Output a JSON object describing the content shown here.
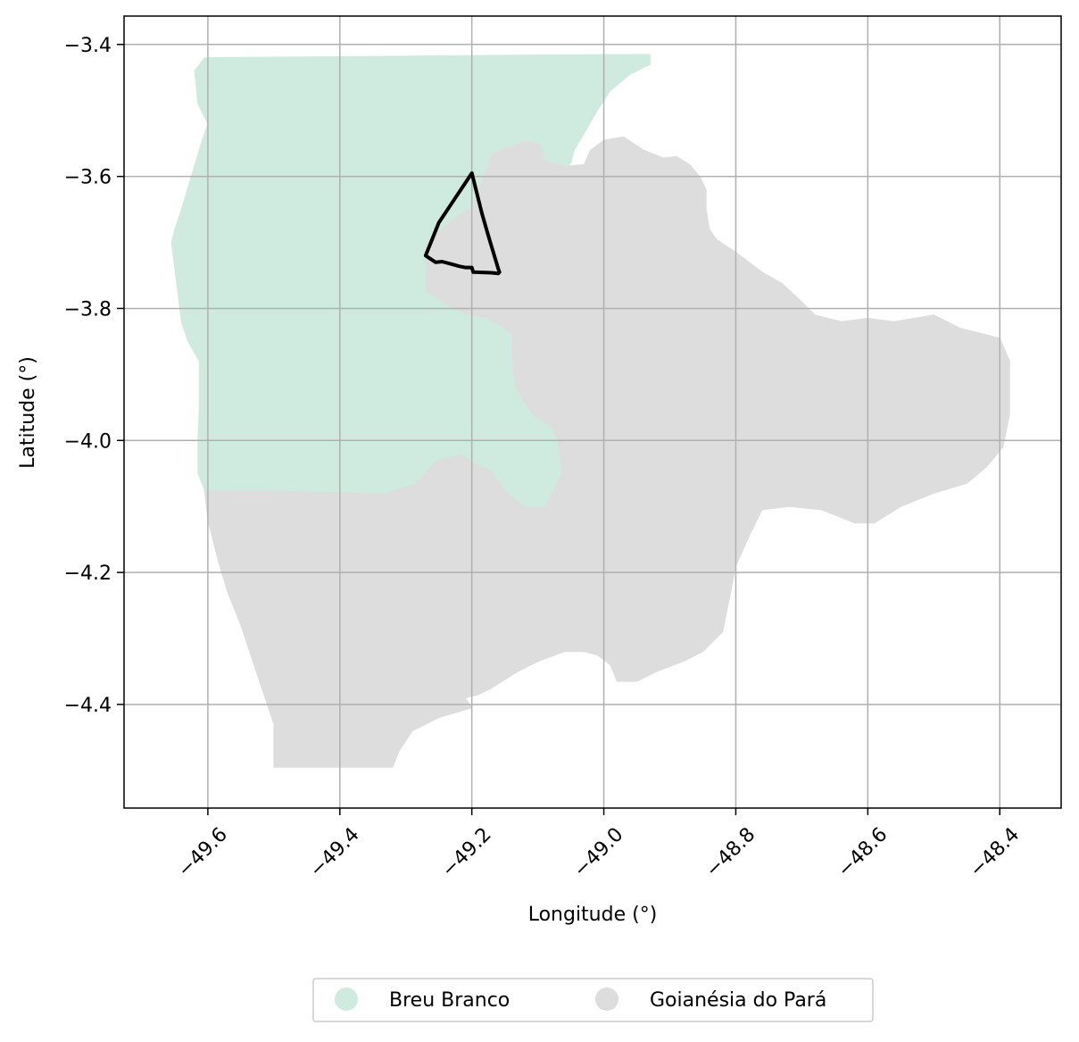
{
  "chart_data": {
    "type": "map",
    "xlabel": "Longitude (°)",
    "ylabel": "Latitude (°)",
    "xlim": [
      -49.727,
      -48.307
    ],
    "ylim": [
      -4.557,
      -3.357
    ],
    "x_ticks": [
      -49.6,
      -49.4,
      -49.2,
      -49.0,
      -48.8,
      -48.6,
      -48.4
    ],
    "x_tick_labels": [
      "−49.6",
      "−49.4",
      "−49.2",
      "−49.0",
      "−48.8",
      "−48.6",
      "−48.4"
    ],
    "y_ticks": [
      -3.4,
      -3.6,
      -3.8,
      -4.0,
      -4.2,
      -4.4
    ],
    "y_tick_labels": [
      "−3.4",
      "−3.6",
      "−3.8",
      "−4.0",
      "−4.2",
      "−4.4"
    ],
    "grid": true,
    "legend_position": "bottom-center",
    "regions": [
      {
        "name": "Goianésia do Pará",
        "color": "#dddddd",
        "polygon": [
          [
            -49.2,
            -3.645
          ],
          [
            -49.17,
            -3.565
          ],
          [
            -49.12,
            -3.545
          ],
          [
            -49.09,
            -3.55
          ],
          [
            -49.09,
            -3.575
          ],
          [
            -49.06,
            -3.585
          ],
          [
            -49.03,
            -3.582
          ],
          [
            -49.02,
            -3.56
          ],
          [
            -49.0,
            -3.545
          ],
          [
            -48.97,
            -3.54
          ],
          [
            -48.94,
            -3.56
          ],
          [
            -48.91,
            -3.572
          ],
          [
            -48.89,
            -3.57
          ],
          [
            -48.87,
            -3.582
          ],
          [
            -48.855,
            -3.6
          ],
          [
            -48.845,
            -3.62
          ],
          [
            -48.845,
            -3.65
          ],
          [
            -48.84,
            -3.68
          ],
          [
            -48.83,
            -3.695
          ],
          [
            -48.8,
            -3.715
          ],
          [
            -48.78,
            -3.73
          ],
          [
            -48.76,
            -3.745
          ],
          [
            -48.73,
            -3.762
          ],
          [
            -48.7,
            -3.79
          ],
          [
            -48.68,
            -3.81
          ],
          [
            -48.64,
            -3.82
          ],
          [
            -48.6,
            -3.815
          ],
          [
            -48.56,
            -3.82
          ],
          [
            -48.5,
            -3.81
          ],
          [
            -48.46,
            -3.83
          ],
          [
            -48.4,
            -3.845
          ],
          [
            -48.385,
            -3.88
          ],
          [
            -48.385,
            -3.96
          ],
          [
            -48.395,
            -4.01
          ],
          [
            -48.42,
            -4.04
          ],
          [
            -48.45,
            -4.065
          ],
          [
            -48.5,
            -4.08
          ],
          [
            -48.55,
            -4.1
          ],
          [
            -48.59,
            -4.125
          ],
          [
            -48.62,
            -4.125
          ],
          [
            -48.67,
            -4.105
          ],
          [
            -48.72,
            -4.1
          ],
          [
            -48.76,
            -4.105
          ],
          [
            -48.78,
            -4.145
          ],
          [
            -48.8,
            -4.19
          ],
          [
            -48.81,
            -4.24
          ],
          [
            -48.82,
            -4.29
          ],
          [
            -48.85,
            -4.32
          ],
          [
            -48.88,
            -4.335
          ],
          [
            -48.92,
            -4.35
          ],
          [
            -48.95,
            -4.365
          ],
          [
            -48.98,
            -4.365
          ],
          [
            -48.99,
            -4.34
          ],
          [
            -49.01,
            -4.325
          ],
          [
            -49.03,
            -4.32
          ],
          [
            -49.06,
            -4.32
          ],
          [
            -49.1,
            -4.335
          ],
          [
            -49.13,
            -4.35
          ],
          [
            -49.17,
            -4.375
          ],
          [
            -49.19,
            -4.385
          ],
          [
            -49.21,
            -4.39
          ],
          [
            -49.2,
            -4.405
          ],
          [
            -49.25,
            -4.42
          ],
          [
            -49.29,
            -4.44
          ],
          [
            -49.31,
            -4.47
          ],
          [
            -49.32,
            -4.495
          ],
          [
            -49.5,
            -4.495
          ],
          [
            -49.5,
            -4.43
          ],
          [
            -49.515,
            -4.385
          ],
          [
            -49.53,
            -4.34
          ],
          [
            -49.55,
            -4.28
          ],
          [
            -49.57,
            -4.23
          ],
          [
            -49.585,
            -4.18
          ],
          [
            -49.6,
            -4.12
          ],
          [
            -49.605,
            -4.075
          ],
          [
            -49.505,
            -4.075
          ],
          [
            -49.335,
            -4.08
          ],
          [
            -49.285,
            -4.065
          ],
          [
            -49.255,
            -4.03
          ],
          [
            -49.215,
            -4.02
          ],
          [
            -49.195,
            -4.035
          ],
          [
            -49.17,
            -4.045
          ],
          [
            -49.15,
            -4.075
          ],
          [
            -49.12,
            -4.1
          ],
          [
            -49.09,
            -4.1
          ],
          [
            -49.065,
            -4.05
          ],
          [
            -49.07,
            -4.0
          ],
          [
            -49.08,
            -3.98
          ],
          [
            -49.11,
            -3.96
          ],
          [
            -49.135,
            -3.92
          ],
          [
            -49.14,
            -3.88
          ],
          [
            -49.14,
            -3.84
          ],
          [
            -49.16,
            -3.825
          ],
          [
            -49.18,
            -3.815
          ],
          [
            -49.21,
            -3.81
          ],
          [
            -49.23,
            -3.8
          ],
          [
            -49.27,
            -3.775
          ],
          [
            -49.27,
            -3.7
          ],
          [
            -49.23,
            -3.665
          ]
        ]
      },
      {
        "name": "Breu Branco",
        "color": "#cfeade",
        "polygon": [
          [
            -49.605,
            -3.42
          ],
          [
            -49.335,
            -3.418
          ],
          [
            -49.1,
            -3.416
          ],
          [
            -48.93,
            -3.415
          ],
          [
            -48.93,
            -3.43
          ],
          [
            -48.96,
            -3.445
          ],
          [
            -48.99,
            -3.47
          ],
          [
            -49.01,
            -3.5
          ],
          [
            -49.03,
            -3.535
          ],
          [
            -49.045,
            -3.56
          ],
          [
            -49.05,
            -3.58
          ],
          [
            -49.055,
            -3.585
          ],
          [
            -49.09,
            -3.575
          ],
          [
            -49.095,
            -3.55
          ],
          [
            -49.12,
            -3.545
          ],
          [
            -49.17,
            -3.565
          ],
          [
            -49.2,
            -3.645
          ],
          [
            -49.23,
            -3.665
          ],
          [
            -49.27,
            -3.7
          ],
          [
            -49.27,
            -3.775
          ],
          [
            -49.23,
            -3.8
          ],
          [
            -49.21,
            -3.81
          ],
          [
            -49.18,
            -3.815
          ],
          [
            -49.16,
            -3.825
          ],
          [
            -49.14,
            -3.84
          ],
          [
            -49.14,
            -3.88
          ],
          [
            -49.135,
            -3.92
          ],
          [
            -49.11,
            -3.96
          ],
          [
            -49.08,
            -3.98
          ],
          [
            -49.07,
            -4.0
          ],
          [
            -49.065,
            -4.05
          ],
          [
            -49.09,
            -4.1
          ],
          [
            -49.12,
            -4.1
          ],
          [
            -49.15,
            -4.075
          ],
          [
            -49.17,
            -4.045
          ],
          [
            -49.195,
            -4.035
          ],
          [
            -49.215,
            -4.02
          ],
          [
            -49.255,
            -4.03
          ],
          [
            -49.285,
            -4.065
          ],
          [
            -49.335,
            -4.08
          ],
          [
            -49.505,
            -4.075
          ],
          [
            -49.605,
            -4.075
          ],
          [
            -49.615,
            -4.05
          ],
          [
            -49.615,
            -4.0
          ],
          [
            -49.613,
            -3.95
          ],
          [
            -49.613,
            -3.88
          ],
          [
            -49.63,
            -3.85
          ],
          [
            -49.64,
            -3.82
          ],
          [
            -49.645,
            -3.78
          ],
          [
            -49.65,
            -3.74
          ],
          [
            -49.655,
            -3.7
          ],
          [
            -49.65,
            -3.68
          ],
          [
            -49.64,
            -3.65
          ],
          [
            -49.625,
            -3.6
          ],
          [
            -49.61,
            -3.55
          ],
          [
            -49.6,
            -3.52
          ],
          [
            -49.615,
            -3.49
          ],
          [
            -49.62,
            -3.44
          ]
        ]
      }
    ],
    "outline": {
      "color": "#000000",
      "polygon": [
        [
          -49.2,
          -3.595
        ],
        [
          -49.21,
          -3.61
        ],
        [
          -49.23,
          -3.64
        ],
        [
          -49.25,
          -3.67
        ],
        [
          -49.27,
          -3.72
        ],
        [
          -49.255,
          -3.73
        ],
        [
          -49.245,
          -3.729
        ],
        [
          -49.23,
          -3.733
        ],
        [
          -49.22,
          -3.736
        ],
        [
          -49.21,
          -3.738
        ],
        [
          -49.2,
          -3.738
        ],
        [
          -49.198,
          -3.745
        ],
        [
          -49.17,
          -3.746
        ],
        [
          -49.16,
          -3.747
        ],
        [
          -49.158,
          -3.745
        ],
        [
          -49.16,
          -3.74
        ],
        [
          -49.175,
          -3.69
        ],
        [
          -49.185,
          -3.655
        ]
      ]
    },
    "legend": [
      {
        "label": "Breu Branco",
        "color": "#cfeade"
      },
      {
        "label": "Goianésia do Pará",
        "color": "#dddddd"
      }
    ]
  }
}
